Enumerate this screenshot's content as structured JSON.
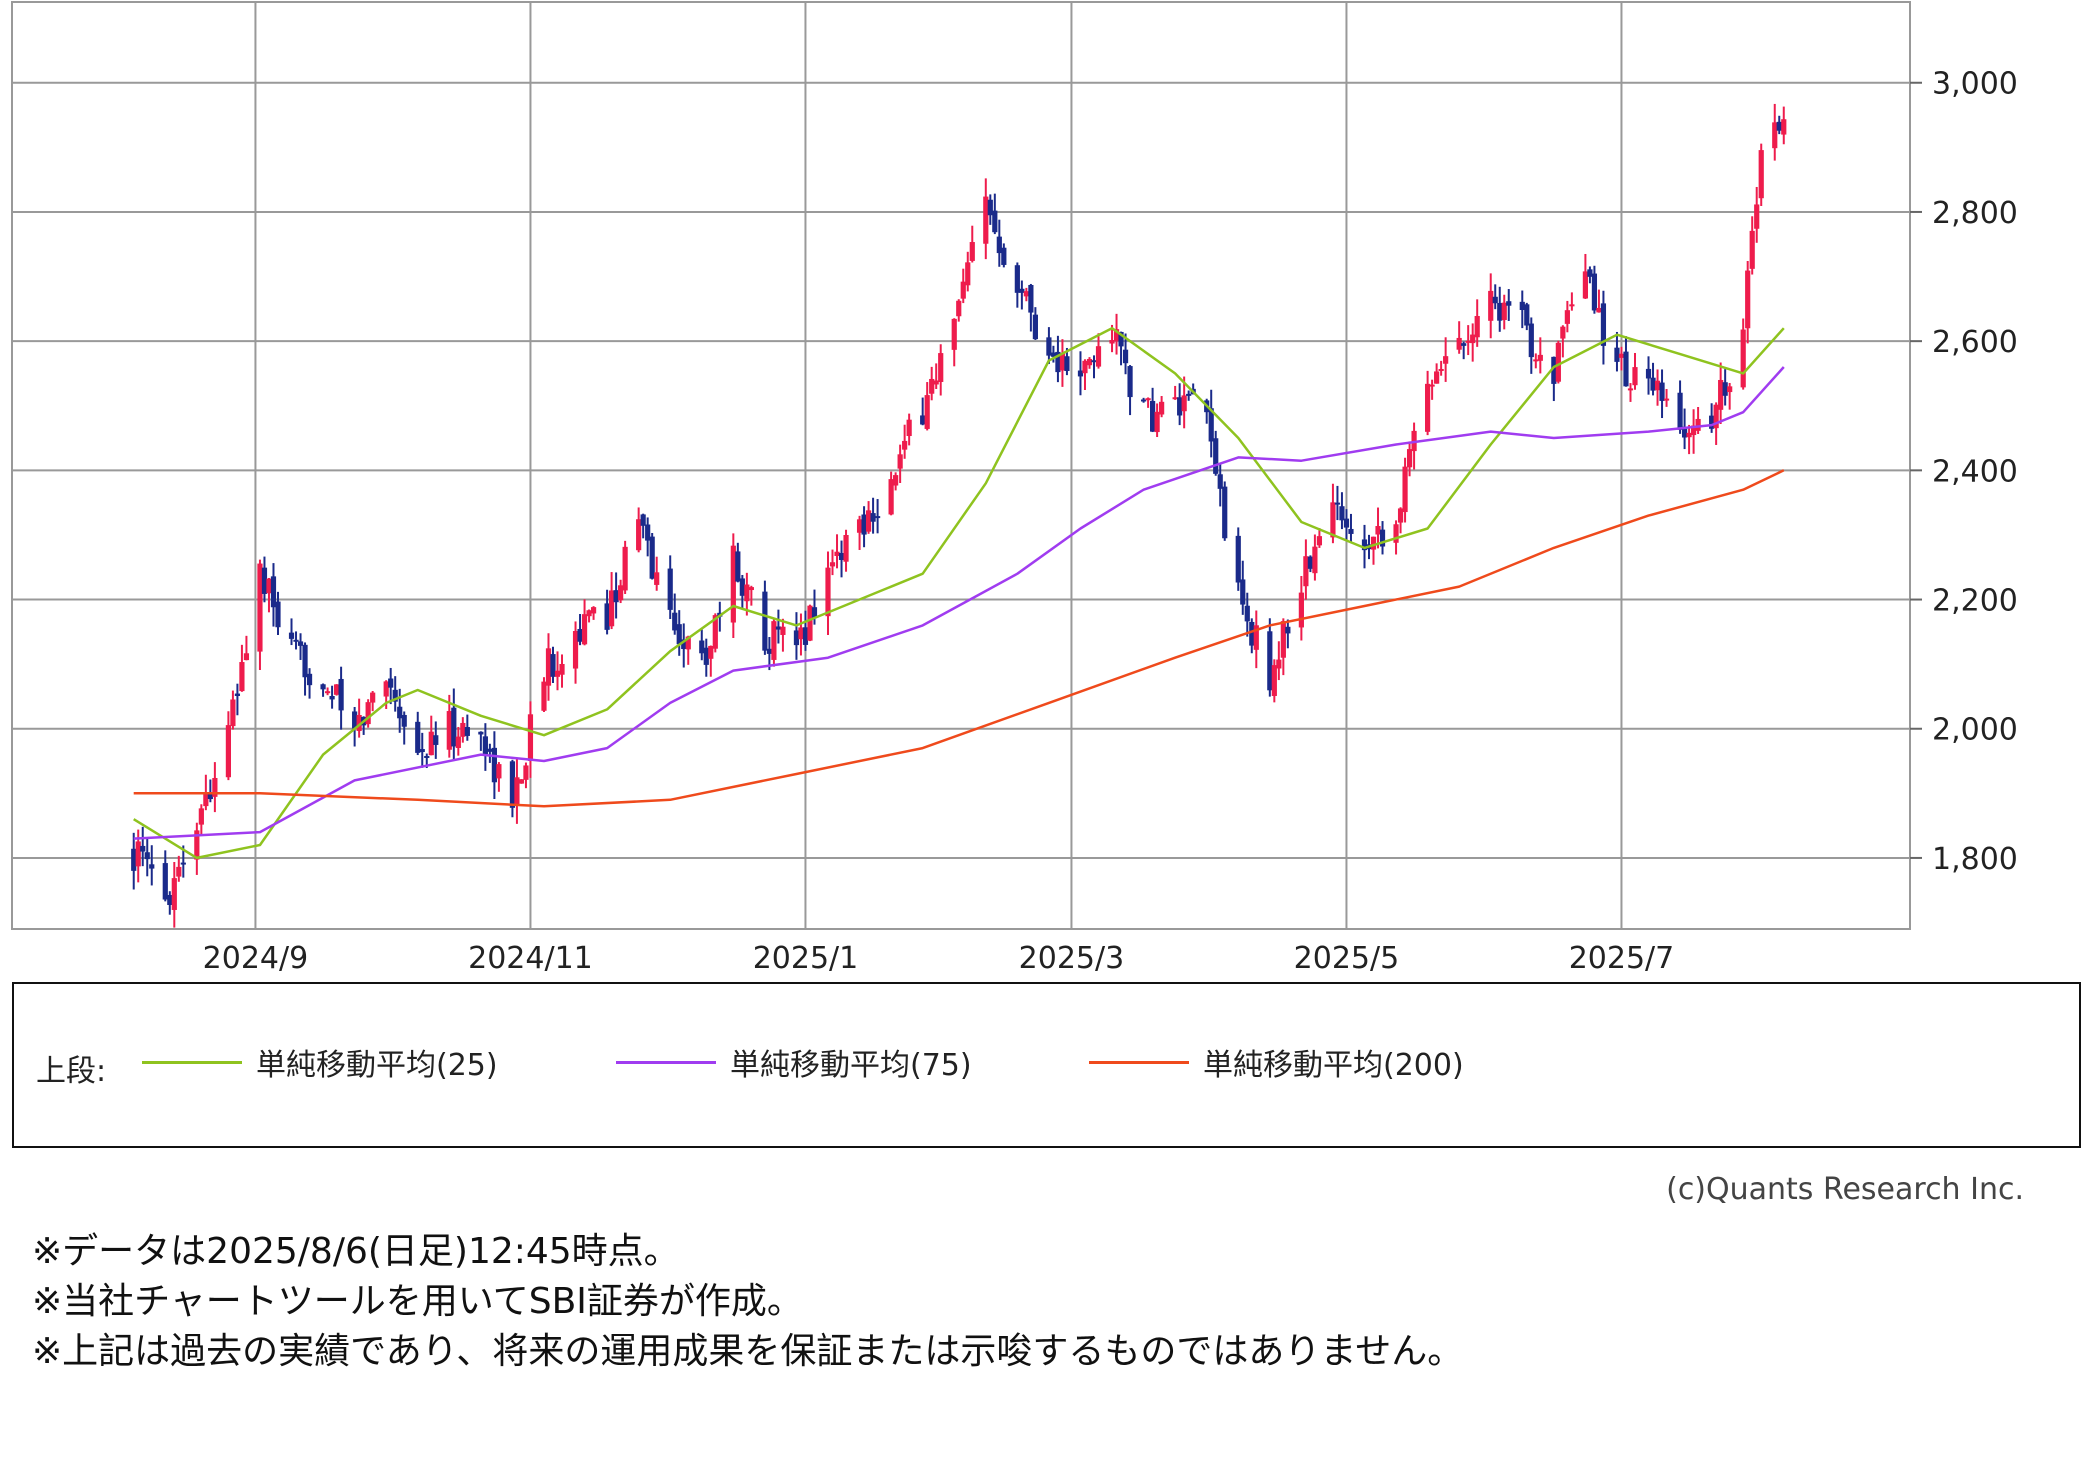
{
  "chart_data": {
    "type": "candlestick",
    "y_ticks": [
      "1,800",
      "2,000",
      "2,200",
      "2,400",
      "2,600",
      "2,800",
      "3,000"
    ],
    "y_tick_values": [
      1800,
      2000,
      2200,
      2400,
      2600,
      2800,
      3000
    ],
    "x_ticks": [
      "2024/9",
      "2024/11",
      "2025/1",
      "2025/3",
      "2025/5",
      "2025/7"
    ],
    "x_tick_values": [
      "2024-09-01",
      "2024-11-01",
      "2025-01-01",
      "2025-03-01",
      "2025-05-01",
      "2025-07-01"
    ],
    "ylim": [
      1690,
      3125
    ],
    "xlim": [
      "2024-07-09",
      "2025-09-03"
    ],
    "grid": true,
    "up_color": "#ee1c4c",
    "down_color": "#1a2a8a",
    "price_path": [
      [
        "2024-08-05",
        1810
      ],
      [
        "2024-08-12",
        1740
      ],
      [
        "2024-08-19",
        1860
      ],
      [
        "2024-08-26",
        1990
      ],
      [
        "2024-09-02",
        2240
      ],
      [
        "2024-09-09",
        2110
      ],
      [
        "2024-09-16",
        2080
      ],
      [
        "2024-09-23",
        1990
      ],
      [
        "2024-09-30",
        2090
      ],
      [
        "2024-10-07",
        1960
      ],
      [
        "2024-10-14",
        2000
      ],
      [
        "2024-10-21",
        1990
      ],
      [
        "2024-10-28",
        1880
      ],
      [
        "2024-11-04",
        2090
      ],
      [
        "2024-11-11",
        2150
      ],
      [
        "2024-11-18",
        2180
      ],
      [
        "2024-11-25",
        2320
      ],
      [
        "2024-12-02",
        2170
      ],
      [
        "2024-12-09",
        2100
      ],
      [
        "2024-12-16",
        2260
      ],
      [
        "2024-12-23",
        2150
      ],
      [
        "2024-12-30",
        2120
      ],
      [
        "2025-01-06",
        2250
      ],
      [
        "2025-01-13",
        2320
      ],
      [
        "2025-01-20",
        2380
      ],
      [
        "2025-01-27",
        2500
      ],
      [
        "2025-02-03",
        2620
      ],
      [
        "2025-02-10",
        2810
      ],
      [
        "2025-02-17",
        2700
      ],
      [
        "2025-02-24",
        2580
      ],
      [
        "2025-03-03",
        2540
      ],
      [
        "2025-03-10",
        2620
      ],
      [
        "2025-03-17",
        2480
      ],
      [
        "2025-03-24",
        2500
      ],
      [
        "2025-03-31",
        2480
      ],
      [
        "2025-04-07",
        2200
      ],
      [
        "2025-04-14",
        2080
      ],
      [
        "2025-04-21",
        2230
      ],
      [
        "2025-04-28",
        2340
      ],
      [
        "2025-05-05",
        2300
      ],
      [
        "2025-05-12",
        2320
      ],
      [
        "2025-05-19",
        2550
      ],
      [
        "2025-05-26",
        2600
      ],
      [
        "2025-06-02",
        2670
      ],
      [
        "2025-06-09",
        2620
      ],
      [
        "2025-06-16",
        2560
      ],
      [
        "2025-06-23",
        2700
      ],
      [
        "2025-06-30",
        2560
      ],
      [
        "2025-07-07",
        2530
      ],
      [
        "2025-07-14",
        2460
      ],
      [
        "2025-07-21",
        2480
      ],
      [
        "2025-07-28",
        2620
      ],
      [
        "2025-08-01",
        2900
      ],
      [
        "2025-08-06",
        2950
      ]
    ],
    "series": [
      {
        "name": "単純移動平均(25)",
        "color": "#8fc31f",
        "points": [
          [
            "2024-08-05",
            1860
          ],
          [
            "2024-08-19",
            1800
          ],
          [
            "2024-09-02",
            1820
          ],
          [
            "2024-09-16",
            1960
          ],
          [
            "2024-09-30",
            2040
          ],
          [
            "2024-10-07",
            2060
          ],
          [
            "2024-10-21",
            2020
          ],
          [
            "2024-11-04",
            1990
          ],
          [
            "2024-11-18",
            2030
          ],
          [
            "2024-12-02",
            2120
          ],
          [
            "2024-12-16",
            2190
          ],
          [
            "2024-12-30",
            2160
          ],
          [
            "2025-01-13",
            2200
          ],
          [
            "2025-01-27",
            2240
          ],
          [
            "2025-02-10",
            2380
          ],
          [
            "2025-02-24",
            2570
          ],
          [
            "2025-03-10",
            2620
          ],
          [
            "2025-03-24",
            2550
          ],
          [
            "2025-04-07",
            2450
          ],
          [
            "2025-04-21",
            2320
          ],
          [
            "2025-05-05",
            2280
          ],
          [
            "2025-05-19",
            2310
          ],
          [
            "2025-06-02",
            2440
          ],
          [
            "2025-06-16",
            2560
          ],
          [
            "2025-06-30",
            2610
          ],
          [
            "2025-07-14",
            2580
          ],
          [
            "2025-07-28",
            2550
          ],
          [
            "2025-08-06",
            2620
          ]
        ]
      },
      {
        "name": "単純移動平均(75)",
        "color": "#a03cf0",
        "points": [
          [
            "2024-08-05",
            1830
          ],
          [
            "2024-09-02",
            1840
          ],
          [
            "2024-09-23",
            1920
          ],
          [
            "2024-10-21",
            1960
          ],
          [
            "2024-11-04",
            1950
          ],
          [
            "2024-11-18",
            1970
          ],
          [
            "2024-12-02",
            2040
          ],
          [
            "2024-12-16",
            2090
          ],
          [
            "2025-01-06",
            2110
          ],
          [
            "2025-01-27",
            2160
          ],
          [
            "2025-02-17",
            2240
          ],
          [
            "2025-03-03",
            2310
          ],
          [
            "2025-03-17",
            2370
          ],
          [
            "2025-04-07",
            2420
          ],
          [
            "2025-04-21",
            2415
          ],
          [
            "2025-05-12",
            2440
          ],
          [
            "2025-06-02",
            2460
          ],
          [
            "2025-06-16",
            2450
          ],
          [
            "2025-07-07",
            2460
          ],
          [
            "2025-07-21",
            2470
          ],
          [
            "2025-07-28",
            2490
          ],
          [
            "2025-08-06",
            2560
          ]
        ]
      },
      {
        "name": "単純移動平均(200)",
        "color": "#ef4a1c",
        "points": [
          [
            "2024-08-05",
            1900
          ],
          [
            "2024-09-02",
            1900
          ],
          [
            "2024-10-07",
            1890
          ],
          [
            "2024-11-04",
            1880
          ],
          [
            "2024-12-02",
            1890
          ],
          [
            "2024-12-30",
            1930
          ],
          [
            "2025-01-27",
            1970
          ],
          [
            "2025-02-24",
            2040
          ],
          [
            "2025-03-24",
            2110
          ],
          [
            "2025-04-14",
            2160
          ],
          [
            "2025-05-05",
            2190
          ],
          [
            "2025-05-26",
            2220
          ],
          [
            "2025-06-16",
            2280
          ],
          [
            "2025-07-07",
            2330
          ],
          [
            "2025-07-28",
            2370
          ],
          [
            "2025-08-06",
            2400
          ]
        ]
      }
    ]
  },
  "legend": {
    "prefix": "上段:",
    "items": [
      {
        "label": "単純移動平均(25)",
        "color": "#8fc31f"
      },
      {
        "label": "単純移動平均(75)",
        "color": "#a03cf0"
      },
      {
        "label": "単純移動平均(200)",
        "color": "#ef4a1c"
      }
    ]
  },
  "copyright": "(c)Quants Research Inc.",
  "notes": [
    "※データは2025/8/6(日足)12:45時点。",
    "※当社チャートツールを用いてSBI証券が作成。",
    "※上記は過去の実績であり、将来の運用成果を保証または示唆するものではありません。"
  ]
}
